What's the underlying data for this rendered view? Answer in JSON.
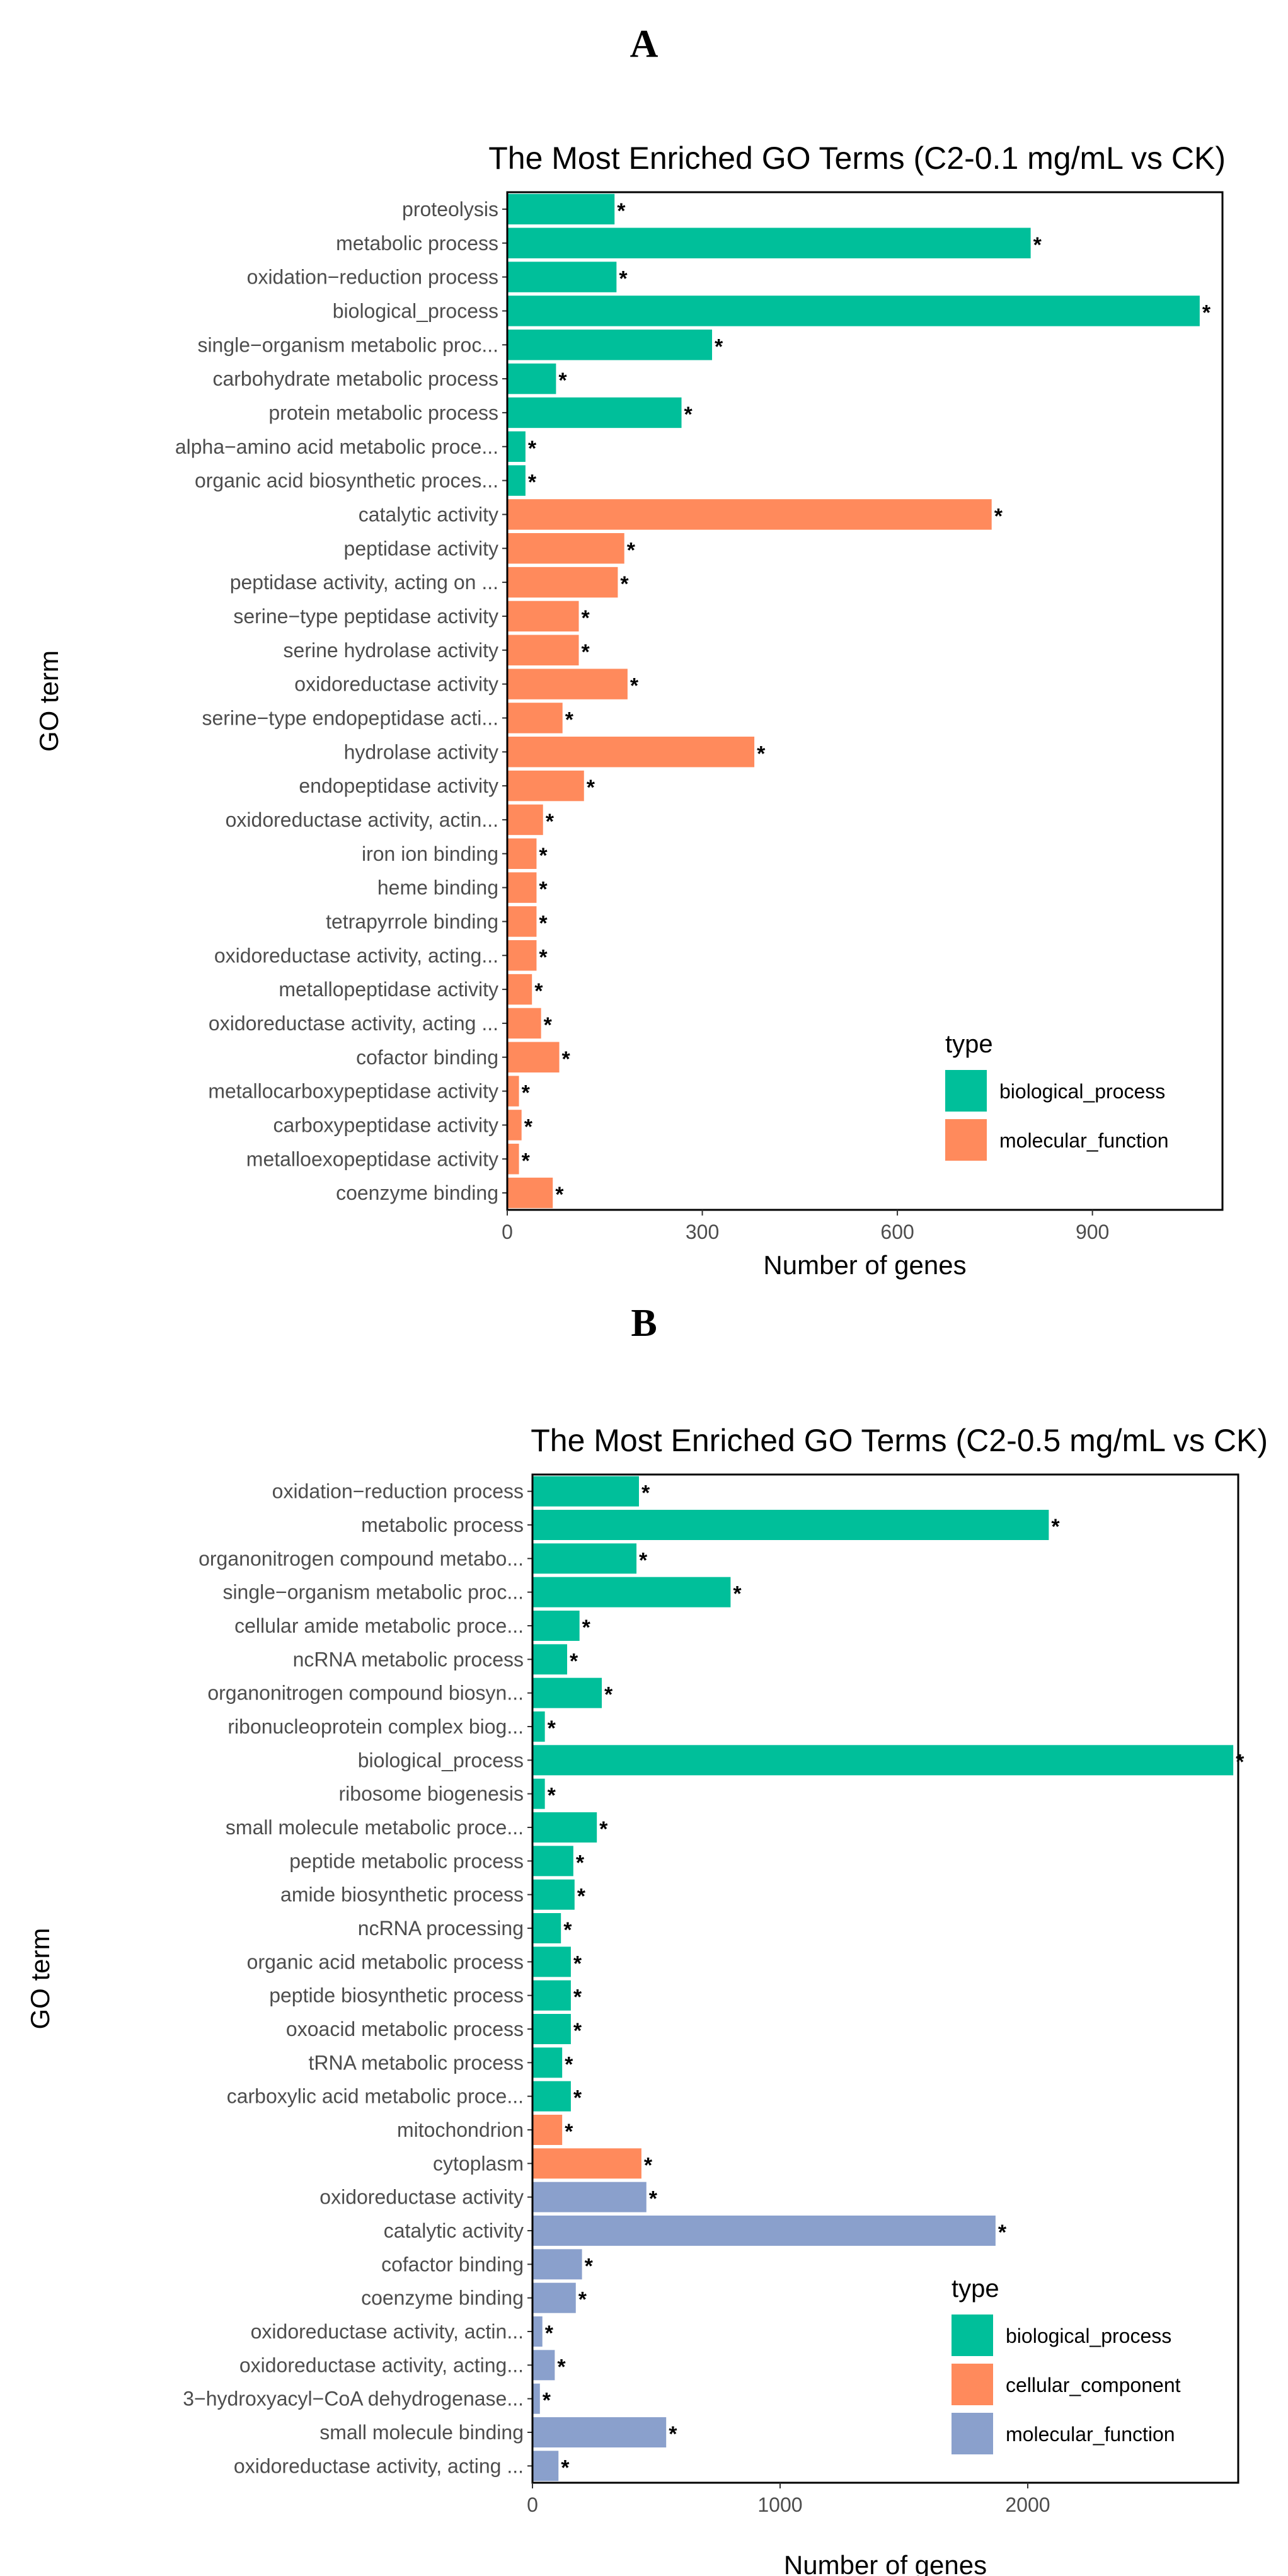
{
  "chart_data": [
    {
      "panel": "A",
      "type": "bar",
      "orientation": "horizontal",
      "title": "The Most Enriched GO Terms (C2-0.1 mg/mL vs CK)",
      "xlabel": "Number of genes",
      "ylabel": "GO term",
      "xlim": [
        0,
        1100
      ],
      "xticks": [
        0,
        300,
        600,
        900
      ],
      "legend": {
        "title": "type",
        "position": "bottom-right",
        "entries": [
          {
            "name": "biological_process",
            "color": "#00BF9A"
          },
          {
            "name": "molecular_function",
            "color": "#FF8A5C"
          }
        ]
      },
      "bars": [
        {
          "term": "proteolysis",
          "value": 165,
          "type": "biological_process"
        },
        {
          "term": "metabolic process",
          "value": 805,
          "type": "biological_process"
        },
        {
          "term": "oxidation−reduction process",
          "value": 168,
          "type": "biological_process"
        },
        {
          "term": "biological_process",
          "value": 1065,
          "type": "biological_process"
        },
        {
          "term": "single−organism metabolic proc...",
          "value": 315,
          "type": "biological_process"
        },
        {
          "term": "carbohydrate metabolic process",
          "value": 75,
          "type": "biological_process"
        },
        {
          "term": "protein metabolic process",
          "value": 268,
          "type": "biological_process"
        },
        {
          "term": "alpha−amino acid metabolic proce...",
          "value": 28,
          "type": "biological_process"
        },
        {
          "term": "organic acid biosynthetic proces...",
          "value": 28,
          "type": "biological_process"
        },
        {
          "term": "catalytic activity",
          "value": 745,
          "type": "molecular_function"
        },
        {
          "term": "peptidase activity",
          "value": 180,
          "type": "molecular_function"
        },
        {
          "term": "peptidase activity, acting on ...",
          "value": 170,
          "type": "molecular_function"
        },
        {
          "term": "serine−type peptidase activity",
          "value": 110,
          "type": "molecular_function"
        },
        {
          "term": "serine hydrolase activity",
          "value": 110,
          "type": "molecular_function"
        },
        {
          "term": "oxidoreductase activity",
          "value": 185,
          "type": "molecular_function"
        },
        {
          "term": "serine−type endopeptidase acti...",
          "value": 85,
          "type": "molecular_function"
        },
        {
          "term": "hydrolase activity",
          "value": 380,
          "type": "molecular_function"
        },
        {
          "term": "endopeptidase activity",
          "value": 118,
          "type": "molecular_function"
        },
        {
          "term": "oxidoreductase activity, actin...",
          "value": 55,
          "type": "molecular_function"
        },
        {
          "term": "iron ion binding",
          "value": 45,
          "type": "molecular_function"
        },
        {
          "term": "heme binding",
          "value": 45,
          "type": "molecular_function"
        },
        {
          "term": "tetrapyrrole binding",
          "value": 45,
          "type": "molecular_function"
        },
        {
          "term": "oxidoreductase activity, acting...",
          "value": 45,
          "type": "molecular_function"
        },
        {
          "term": "metallopeptidase activity",
          "value": 38,
          "type": "molecular_function"
        },
        {
          "term": "oxidoreductase activity, acting ...",
          "value": 52,
          "type": "molecular_function"
        },
        {
          "term": "cofactor binding",
          "value": 80,
          "type": "molecular_function"
        },
        {
          "term": "metallocarboxypeptidase activity",
          "value": 18,
          "type": "molecular_function"
        },
        {
          "term": "carboxypeptidase activity",
          "value": 22,
          "type": "molecular_function"
        },
        {
          "term": "metalloexopeptidase activity",
          "value": 18,
          "type": "molecular_function"
        },
        {
          "term": "coenzyme binding",
          "value": 70,
          "type": "molecular_function"
        }
      ]
    },
    {
      "panel": "B",
      "type": "bar",
      "orientation": "horizontal",
      "title": "The Most Enriched GO Terms (C2-0.5 mg/mL vs CK)",
      "xlabel": "Number of genes",
      "ylabel": "GO term",
      "xlim": [
        0,
        2850
      ],
      "xticks": [
        0,
        1000,
        2000
      ],
      "legend": {
        "title": "type",
        "position": "bottom-right",
        "entries": [
          {
            "name": "biological_process",
            "color": "#00BF9A"
          },
          {
            "name": "cellular_component",
            "color": "#FF8A5C"
          },
          {
            "name": "molecular_function",
            "color": "#8AA0CC"
          }
        ]
      },
      "bars": [
        {
          "term": "oxidation−reduction process",
          "value": 430,
          "type": "biological_process"
        },
        {
          "term": "metabolic process",
          "value": 2085,
          "type": "biological_process"
        },
        {
          "term": "organonitrogen compound metabo...",
          "value": 420,
          "type": "biological_process"
        },
        {
          "term": "single−organism metabolic proc...",
          "value": 800,
          "type": "biological_process"
        },
        {
          "term": "cellular amide metabolic proce...",
          "value": 190,
          "type": "biological_process"
        },
        {
          "term": "ncRNA metabolic process",
          "value": 140,
          "type": "biological_process"
        },
        {
          "term": "organonitrogen compound biosyn...",
          "value": 280,
          "type": "biological_process"
        },
        {
          "term": "ribonucleoprotein complex biog...",
          "value": 50,
          "type": "biological_process"
        },
        {
          "term": "biological_process",
          "value": 2830,
          "type": "biological_process"
        },
        {
          "term": "ribosome biogenesis",
          "value": 50,
          "type": "biological_process"
        },
        {
          "term": "small molecule metabolic proce...",
          "value": 260,
          "type": "biological_process"
        },
        {
          "term": "peptide metabolic process",
          "value": 165,
          "type": "biological_process"
        },
        {
          "term": "amide biosynthetic process",
          "value": 170,
          "type": "biological_process"
        },
        {
          "term": "ncRNA processing",
          "value": 115,
          "type": "biological_process"
        },
        {
          "term": "organic acid metabolic process",
          "value": 155,
          "type": "biological_process"
        },
        {
          "term": "peptide biosynthetic process",
          "value": 155,
          "type": "biological_process"
        },
        {
          "term": "oxoacid metabolic process",
          "value": 155,
          "type": "biological_process"
        },
        {
          "term": "tRNA metabolic process",
          "value": 120,
          "type": "biological_process"
        },
        {
          "term": "carboxylic acid metabolic proce...",
          "value": 155,
          "type": "biological_process"
        },
        {
          "term": "mitochondrion",
          "value": 120,
          "type": "cellular_component"
        },
        {
          "term": "cytoplasm",
          "value": 440,
          "type": "cellular_component"
        },
        {
          "term": "oxidoreductase activity",
          "value": 460,
          "type": "molecular_function"
        },
        {
          "term": "catalytic activity",
          "value": 1870,
          "type": "molecular_function"
        },
        {
          "term": "cofactor binding",
          "value": 200,
          "type": "molecular_function"
        },
        {
          "term": "coenzyme binding",
          "value": 175,
          "type": "molecular_function"
        },
        {
          "term": "oxidoreductase activity, actin...",
          "value": 40,
          "type": "molecular_function"
        },
        {
          "term": "oxidoreductase activity, acting...",
          "value": 90,
          "type": "molecular_function"
        },
        {
          "term": "3−hydroxyacyl−CoA dehydrogenase...",
          "value": 30,
          "type": "molecular_function"
        },
        {
          "term": "small molecule binding",
          "value": 540,
          "type": "molecular_function"
        },
        {
          "term": "oxidoreductase activity, acting ...",
          "value": 105,
          "type": "molecular_function"
        }
      ]
    }
  ],
  "significance_marker": "*"
}
